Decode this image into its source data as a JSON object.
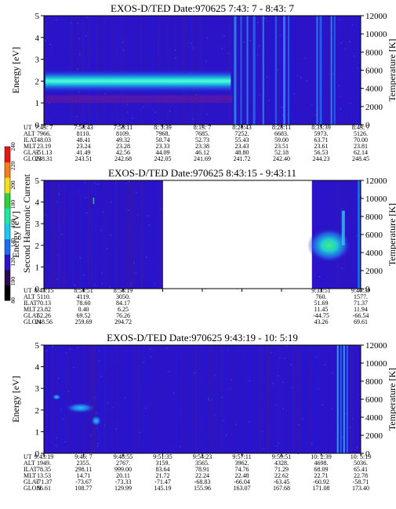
{
  "colorbar": {
    "label": "Second Harmonic Current",
    "ticks": [
      "80",
      "100",
      "120",
      "140",
      "160",
      "180",
      "200",
      "220",
      "240"
    ],
    "colors": [
      "#000000",
      "#2a0a4a",
      "#2b14c8",
      "#1f6cf0",
      "#20c8f0",
      "#20e8a0",
      "#30d040",
      "#f0e020",
      "#f08020",
      "#e01818"
    ]
  },
  "panels": [
    {
      "title": "EXOS-D/TED   Date:970625  7:43: 7 - 8:43: 7",
      "ylabel": "Energy [eV]",
      "y2label": "Temperature [K]",
      "yticks": [
        "0",
        "1",
        "2",
        "3",
        "4",
        "5"
      ],
      "y2ticks": [
        "0",
        "2000",
        "4000",
        "6000",
        "8000",
        "10000",
        "12000"
      ],
      "data_gap": [],
      "table": {
        "rows": [
          {
            "label": "UT",
            "values": [
              "7:43: 7",
              "7:50:43",
              "7:58:11",
              "8: 5:39",
              "8:13: 7",
              "8:20:43",
              "8:28:11",
              "8:35:39",
              "8:43: 7"
            ]
          },
          {
            "label": "ALT",
            "values": [
              "7966.",
              "8110.",
              "8109.",
              "7968.",
              "7685.",
              "7252.",
              "6683.",
              "5973.",
              "5126."
            ]
          },
          {
            "label": "ILAT",
            "values": [
              "48.03",
              "48.41",
              "49.32",
              "50.74",
              "52.73",
              "55.43",
              "59.00",
              "63.71",
              "70.00"
            ]
          },
          {
            "label": "MLT",
            "values": [
              "23.19",
              "23.24",
              "23.28",
              "23.33",
              "23.38",
              "23.43",
              "23.51",
              "23.61",
              "23.81"
            ]
          },
          {
            "label": "GLAT",
            "values": [
              "-51.13",
              "41.49",
              "42.56",
              "44.09",
              "46.12",
              "48.80",
              "52.18",
              "56.53",
              "62.14"
            ]
          },
          {
            "label": "GLON",
            "values": [
              "238.31",
              "243.51",
              "242.68",
              "242.05",
              "241.69",
              "241.72",
              "242.40",
              "244.23",
              "248.45"
            ]
          }
        ]
      }
    },
    {
      "title": "EXOS-D/TED   Date:970625  8:43:15 - 9:43:11",
      "ylabel": "Energy [eV]",
      "y2label": "Temperature [K]",
      "yticks": [
        "0",
        "1",
        "2",
        "3",
        "4",
        "5"
      ],
      "y2ticks": [
        "0",
        "2000",
        "4000",
        "6000",
        "8000",
        "10000",
        "12000"
      ],
      "data_gap": [
        "8:58:19",
        "9:33:51"
      ],
      "table": {
        "rows": [
          {
            "label": "UT",
            "values": [
              "8:43:15",
              "8:50:51",
              "8:58:19",
              "",
              "",
              "",
              "",
              "9:33:51",
              "9:40:39"
            ]
          },
          {
            "label": "ALT",
            "values": [
              "5110.",
              "4119.",
              "3050.",
              "",
              "",
              "",
              "",
              "760.",
              "1577."
            ]
          },
          {
            "label": "ILAT",
            "values": [
              "70.13",
              "78.60",
              "84.17",
              "",
              "",
              "",
              "",
              "51.69",
              "71.37"
            ]
          },
          {
            "label": "MLT",
            "values": [
              "23.82",
              "0.40",
              "6.25",
              "",
              "",
              "",
              "",
              "11.45",
              "11.94"
            ]
          },
          {
            "label": "GLAT",
            "values": [
              "62.26",
              "69.52",
              "76.26",
              "",
              "",
              "",
              "",
              "-44.75",
              "-66.54"
            ]
          },
          {
            "label": "GLON",
            "values": [
              "248.56",
              "259.69",
              "294.72",
              "",
              "",
              "",
              "",
              "43.26",
              "69.61"
            ]
          }
        ]
      }
    },
    {
      "title": "EXOS-D/TED   Date:970625  9:43:19 - 10: 5:19",
      "ylabel": "Energy [eV]",
      "y2label": "Temperature [K]",
      "yticks": [
        "0",
        "1",
        "2",
        "3",
        "4",
        "5"
      ],
      "y2ticks": [
        "0",
        "2000",
        "4000",
        "6000",
        "8000",
        "10000",
        "12000"
      ],
      "data_gap": [],
      "table": {
        "rows": [
          {
            "label": "UT",
            "values": [
              "9:43:19",
              "9:46: 7",
              "9:48:55",
              "9:51:35",
              "9:54:23",
              "9:57:11",
              "9:59:51",
              "10: 2:39",
              "10: 5:19"
            ]
          },
          {
            "label": "ALT",
            "values": [
              "1949.",
              "2355.",
              "2767.",
              "3159.",
              "3565.",
              "3962.",
              "4328.",
              "4698.",
              "5036."
            ]
          },
          {
            "label": "ILAT",
            "values": [
              "78.35",
              "298.11",
              "999.00",
              "83.64",
              "78.91",
              "74.76",
              "71.29",
              "68.09",
              "65.41"
            ]
          },
          {
            "label": "MLT",
            "values": [
              "13.53",
              "14.71",
              "20.11",
              "21.72",
              "22.24",
              "22.48",
              "22.62",
              "22.71",
              "22.78"
            ]
          },
          {
            "label": "GLAT",
            "values": [
              "-71.37",
              "-73.67",
              "-73.33",
              "-71.47",
              "-68.83",
              "-66.04",
              "-63.45",
              "-60.92",
              "-58.71"
            ]
          },
          {
            "label": "GLON",
            "values": [
              "86.61",
              "108.77",
              "129.99",
              "145.19",
              "155.96",
              "163.07",
              "167.68",
              "171.08",
              "173.40"
            ]
          }
        ]
      }
    }
  ],
  "chart_data": [
    {
      "type": "heatmap",
      "title": "EXOS-D/TED   Date:970625  7:43: 7 - 8:43: 7",
      "ylabel": "Energy [eV]",
      "y2label": "Temperature [K]",
      "ylim": [
        0,
        5
      ],
      "y2lim": [
        0,
        12000
      ],
      "x": [
        "7:43: 7",
        "7:50:43",
        "7:58:11",
        "8: 5:39",
        "8:13: 7",
        "8:20:43",
        "8:28:11",
        "8:35:39",
        "8:43: 7"
      ],
      "colorbar_range": [
        80,
        240
      ],
      "features": [
        {
          "kind": "band",
          "x_from": "7:43: 7",
          "x_to": "8:20:43",
          "energy_center": 2.0,
          "energy_width": 0.6,
          "intensity": 160
        }
      ]
    },
    {
      "type": "heatmap",
      "title": "EXOS-D/TED   Date:970625  8:43:15 - 9:43:11",
      "ylabel": "Energy [eV]",
      "y2label": "Temperature [K]",
      "ylim": [
        0,
        5
      ],
      "y2lim": [
        0,
        12000
      ],
      "x": [
        "8:43:15",
        "8:50:51",
        "8:58:19",
        "9:33:51",
        "9:40:39"
      ],
      "colorbar_range": [
        80,
        240
      ],
      "features": [
        {
          "kind": "blob",
          "x_from": "9:33:51",
          "x_to": "9:40:39",
          "energy_center": 2.0,
          "energy_width": 0.8,
          "intensity": 170
        }
      ]
    },
    {
      "type": "heatmap",
      "title": "EXOS-D/TED   Date:970625  9:43:19 - 10: 5:19",
      "ylabel": "Energy [eV]",
      "y2label": "Temperature [K]",
      "ylim": [
        0,
        5
      ],
      "y2lim": [
        0,
        12000
      ],
      "x": [
        "9:43:19",
        "9:46: 7",
        "9:48:55",
        "9:51:35",
        "9:54:23",
        "9:57:11",
        "9:59:51",
        "10: 2:39",
        "10: 5:19"
      ],
      "colorbar_range": [
        80,
        240
      ],
      "features": [
        {
          "kind": "blob",
          "x_from": "9:43:19",
          "x_to": "9:48:55",
          "energy_center": 2.1,
          "energy_width": 0.5,
          "intensity": 140
        }
      ]
    }
  ]
}
